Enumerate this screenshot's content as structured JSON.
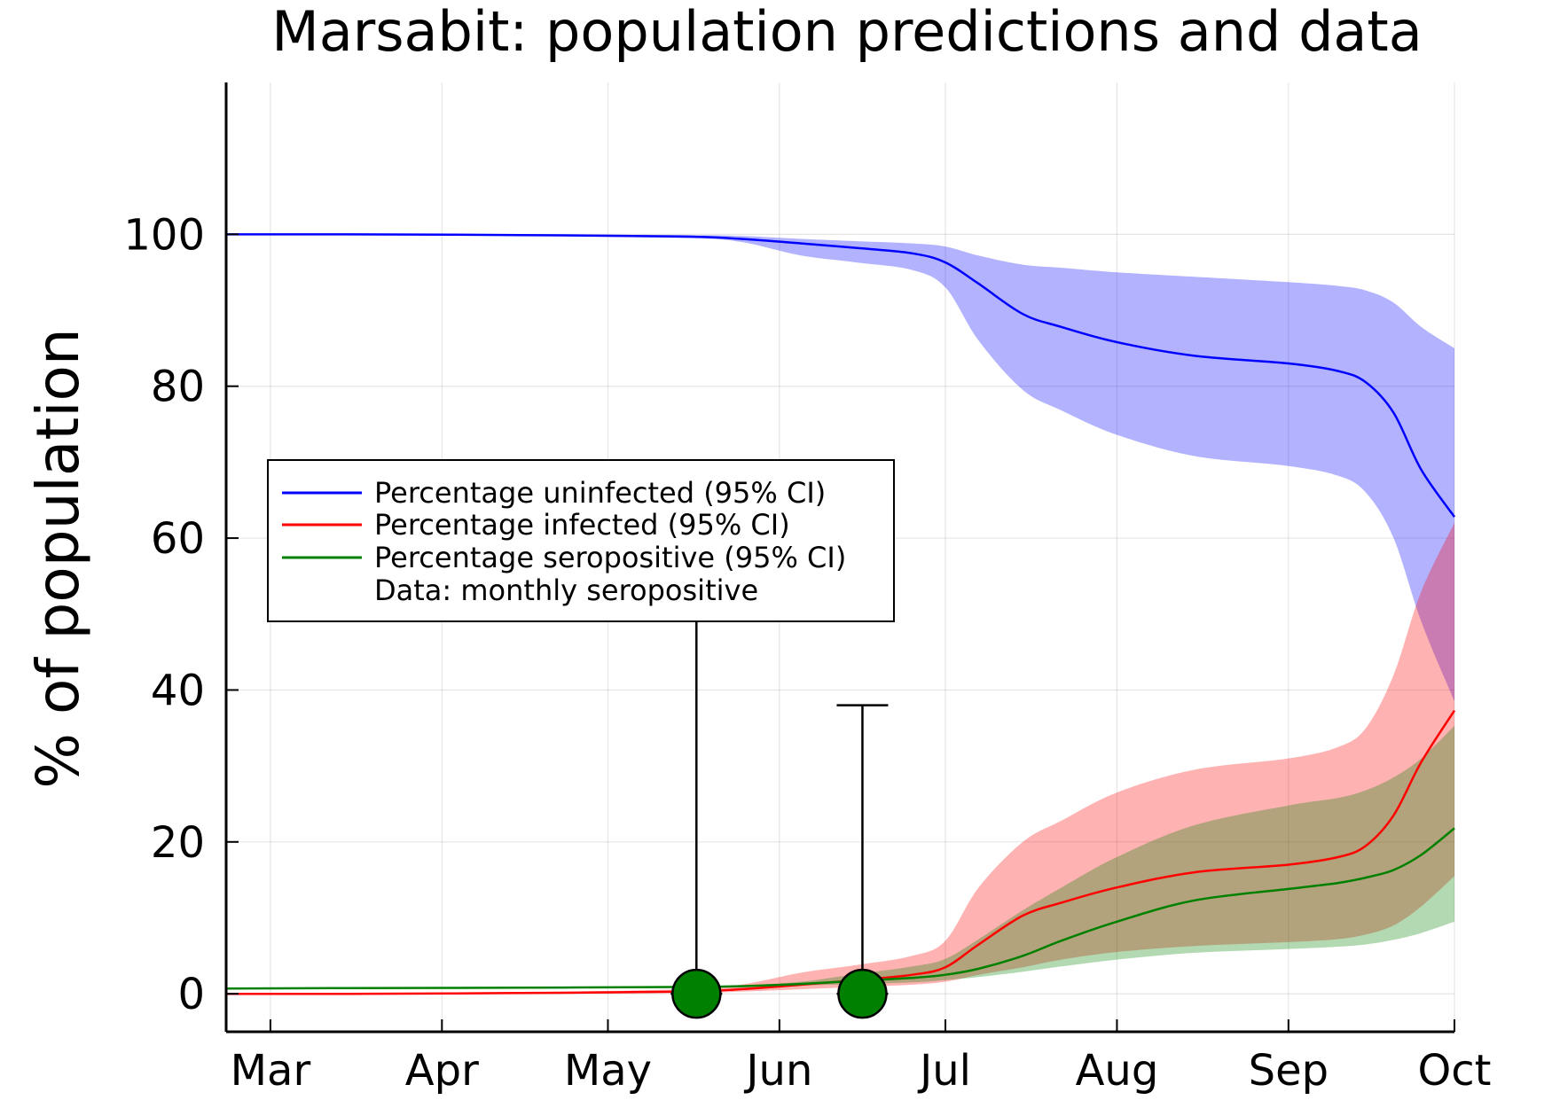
{
  "chart_data": {
    "type": "line",
    "title": "Marsabit: population predictions and data",
    "xlabel": "",
    "ylabel": "% of population",
    "xlim": [
      "2020-02-22",
      "2020-10-01"
    ],
    "ylim": [
      -5,
      120
    ],
    "x_ticks": [
      {
        "date": "2020-03-01",
        "label": "Mar"
      },
      {
        "date": "2020-04-01",
        "label": "Apr"
      },
      {
        "date": "2020-05-01",
        "label": "May"
      },
      {
        "date": "2020-06-01",
        "label": "Jun"
      },
      {
        "date": "2020-07-01",
        "label": "Jul"
      },
      {
        "date": "2020-08-01",
        "label": "Aug"
      },
      {
        "date": "2020-09-01",
        "label": "Sep"
      },
      {
        "date": "2020-10-01",
        "label": "Oct"
      }
    ],
    "y_ticks": [
      0,
      20,
      40,
      60,
      80,
      100
    ],
    "grid": true,
    "legend_position": "center-left",
    "series": [
      {
        "name": "Percentage uninfected (95% CI)",
        "color": "#0000ff",
        "band_color": "#0000ff",
        "x": [
          "2020-02-22",
          "2020-03-15",
          "2020-04-15",
          "2020-05-15",
          "2020-05-25",
          "2020-06-05",
          "2020-06-15",
          "2020-06-25",
          "2020-07-01",
          "2020-07-07",
          "2020-07-15",
          "2020-07-22",
          "2020-08-01",
          "2020-08-15",
          "2020-09-01",
          "2020-09-10",
          "2020-09-15",
          "2020-09-20",
          "2020-09-25",
          "2020-10-01"
        ],
        "y": [
          100,
          100,
          99.9,
          99.7,
          99.4,
          98.8,
          98.2,
          97.5,
          96.3,
          93.5,
          89.5,
          87.8,
          85.8,
          84.0,
          83.0,
          82.0,
          80.5,
          76.5,
          69.0,
          62.8
        ],
        "lower": [
          100,
          100,
          99.8,
          99.5,
          99.0,
          97.2,
          96.3,
          95.3,
          93.0,
          86.0,
          79.5,
          76.8,
          73.6,
          70.8,
          69.5,
          68.2,
          66.0,
          60.0,
          49.0,
          38.5
        ],
        "upper": [
          100,
          100,
          100,
          99.9,
          99.8,
          99.4,
          99.1,
          98.8,
          98.4,
          97.2,
          96.0,
          95.6,
          95.0,
          94.4,
          93.7,
          93.2,
          92.6,
          91.0,
          87.8,
          85.0
        ]
      },
      {
        "name": "Percentage infected (95% CI)",
        "color": "#ff0000",
        "band_color": "#ff0000",
        "x": [
          "2020-02-22",
          "2020-03-15",
          "2020-04-15",
          "2020-05-15",
          "2020-05-25",
          "2020-06-05",
          "2020-06-15",
          "2020-06-25",
          "2020-07-01",
          "2020-07-07",
          "2020-07-15",
          "2020-07-22",
          "2020-08-01",
          "2020-08-15",
          "2020-09-01",
          "2020-09-10",
          "2020-09-15",
          "2020-09-20",
          "2020-09-25",
          "2020-10-01"
        ],
        "y": [
          0,
          0,
          0.1,
          0.3,
          0.6,
          1.2,
          1.8,
          2.5,
          3.5,
          6.5,
          10.3,
          12.0,
          14.0,
          16.0,
          17.0,
          18.0,
          19.5,
          23.5,
          30.5,
          37.3
        ],
        "lower": [
          0,
          0,
          0,
          0.1,
          0.3,
          0.6,
          0.9,
          1.2,
          1.6,
          2.5,
          3.5,
          4.5,
          5.5,
          6.3,
          6.8,
          7.2,
          7.8,
          9.0,
          11.5,
          15.5
        ],
        "upper": [
          0,
          0,
          0.2,
          0.6,
          1.2,
          2.8,
          3.8,
          5.0,
          7.0,
          14.0,
          20.0,
          22.8,
          26.5,
          29.5,
          31.0,
          32.5,
          35.0,
          42.0,
          53.0,
          62.0
        ]
      },
      {
        "name": "Percentage seropositive (95% CI)",
        "color": "#008000",
        "band_color": "#008000",
        "x": [
          "2020-02-22",
          "2020-03-15",
          "2020-04-15",
          "2020-05-15",
          "2020-05-25",
          "2020-06-05",
          "2020-06-15",
          "2020-06-25",
          "2020-07-01",
          "2020-07-07",
          "2020-07-15",
          "2020-07-22",
          "2020-08-01",
          "2020-08-15",
          "2020-09-01",
          "2020-09-10",
          "2020-09-15",
          "2020-09-20",
          "2020-09-25",
          "2020-10-01"
        ],
        "y": [
          0.7,
          0.75,
          0.8,
          0.9,
          1.0,
          1.3,
          1.7,
          2.1,
          2.5,
          3.3,
          5.0,
          7.0,
          9.5,
          12.3,
          13.8,
          14.6,
          15.3,
          16.3,
          18.3,
          21.8
        ],
        "lower": [
          0.7,
          0.75,
          0.8,
          0.9,
          1.0,
          1.1,
          1.3,
          1.5,
          1.8,
          2.2,
          2.9,
          3.6,
          4.5,
          5.4,
          5.9,
          6.2,
          6.5,
          7.1,
          8.0,
          9.5
        ],
        "upper": [
          0.7,
          0.75,
          0.8,
          0.9,
          1.1,
          1.6,
          2.6,
          3.6,
          4.6,
          7.2,
          11.0,
          14.0,
          18.0,
          22.2,
          24.8,
          25.8,
          26.8,
          28.5,
          31.0,
          35.3
        ]
      }
    ],
    "data_points": {
      "name": "Data: monthly seropositive",
      "color": "#008000",
      "points": [
        {
          "date": "2020-05-17",
          "value": 0,
          "err_low": 0,
          "err_high": 63
        },
        {
          "date": "2020-06-16",
          "value": 0,
          "err_low": 0,
          "err_high": 38
        }
      ]
    }
  }
}
